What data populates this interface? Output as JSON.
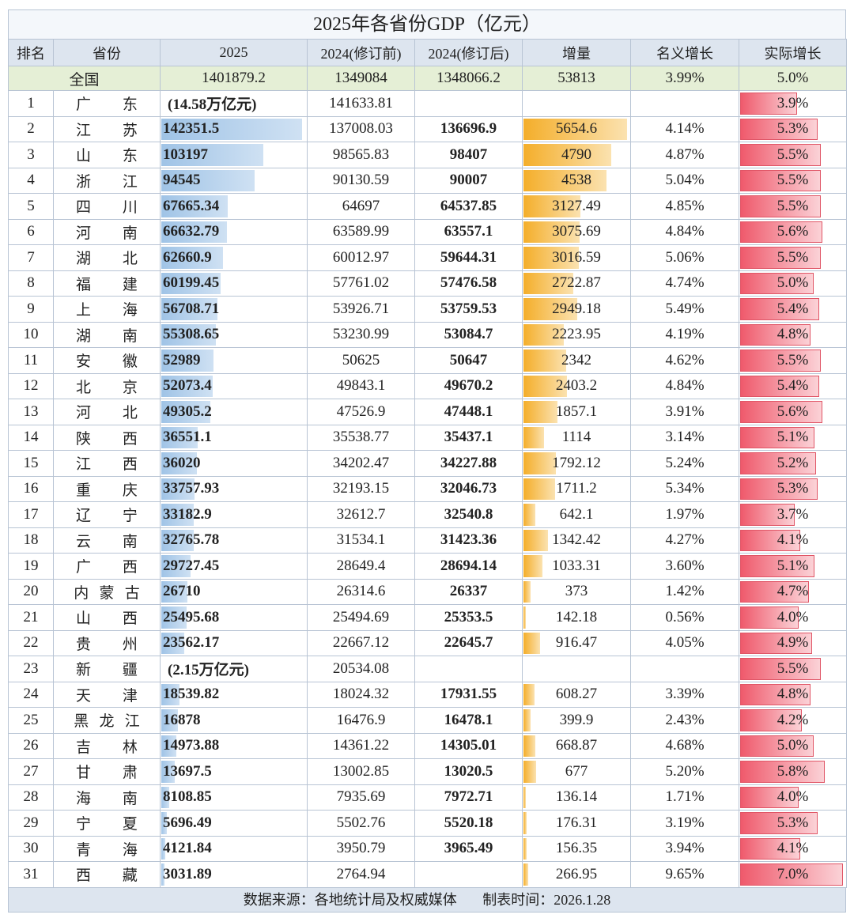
{
  "title": "2025年各省份GDP（亿元）",
  "table": {
    "header": [
      "排名",
      "省份",
      "2025",
      "2024(修订前)",
      "2024(修订后)",
      "增量",
      "名义增长",
      "实际增长"
    ],
    "national": [
      "全国",
      "1401879.2",
      "1349084",
      "1348066.2",
      "53813",
      "3.99%",
      "5.0%"
    ],
    "rows": [
      [
        "1",
        "广东",
        "(14.58万亿元)",
        "141633.81",
        null,
        null,
        null,
        "3.9%"
      ],
      [
        "2",
        "江苏",
        "142351.5",
        "137008.03",
        "136696.9",
        "5654.6",
        "4.14%",
        "5.3%"
      ],
      [
        "3",
        "山东",
        "103197",
        "98565.83",
        "98407",
        "4790",
        "4.87%",
        "5.5%"
      ],
      [
        "4",
        "浙江",
        "94545",
        "90130.59",
        "90007",
        "4538",
        "5.04%",
        "5.5%"
      ],
      [
        "5",
        "四川",
        "67665.34",
        "64697",
        "64537.85",
        "3127.49",
        "4.85%",
        "5.5%"
      ],
      [
        "6",
        "河南",
        "66632.79",
        "63589.99",
        "63557.1",
        "3075.69",
        "4.84%",
        "5.6%"
      ],
      [
        "7",
        "湖北",
        "62660.9",
        "60012.97",
        "59644.31",
        "3016.59",
        "5.06%",
        "5.5%"
      ],
      [
        "8",
        "福建",
        "60199.45",
        "57761.02",
        "57476.58",
        "2722.87",
        "4.74%",
        "5.0%"
      ],
      [
        "9",
        "上海",
        "56708.71",
        "53926.71",
        "53759.53",
        "2949.18",
        "5.49%",
        "5.4%"
      ],
      [
        "10",
        "湖南",
        "55308.65",
        "53230.99",
        "53084.7",
        "2223.95",
        "4.19%",
        "4.8%"
      ],
      [
        "11",
        "安徽",
        "52989",
        "50625",
        "50647",
        "2342",
        "4.62%",
        "5.5%"
      ],
      [
        "12",
        "北京",
        "52073.4",
        "49843.1",
        "49670.2",
        "2403.2",
        "4.84%",
        "5.4%"
      ],
      [
        "13",
        "河北",
        "49305.2",
        "47526.9",
        "47448.1",
        "1857.1",
        "3.91%",
        "5.6%"
      ],
      [
        "14",
        "陕西",
        "36551.1",
        "35538.77",
        "35437.1",
        "1114",
        "3.14%",
        "5.1%"
      ],
      [
        "15",
        "江西",
        "36020",
        "34202.47",
        "34227.88",
        "1792.12",
        "5.24%",
        "5.2%"
      ],
      [
        "16",
        "重庆",
        "33757.93",
        "32193.15",
        "32046.73",
        "1711.2",
        "5.34%",
        "5.3%"
      ],
      [
        "17",
        "辽宁",
        "33182.9",
        "32612.7",
        "32540.8",
        "642.1",
        "1.97%",
        "3.7%"
      ],
      [
        "18",
        "云南",
        "32765.78",
        "31534.1",
        "31423.36",
        "1342.42",
        "4.27%",
        "4.1%"
      ],
      [
        "19",
        "广西",
        "29727.45",
        "28649.4",
        "28694.14",
        "1033.31",
        "3.60%",
        "5.1%"
      ],
      [
        "20",
        "内蒙古",
        "26710",
        "26314.6",
        "26337",
        "373",
        "1.42%",
        "4.7%"
      ],
      [
        "21",
        "山西",
        "25495.68",
        "25494.69",
        "25353.5",
        "142.18",
        "0.56%",
        "4.0%"
      ],
      [
        "22",
        "贵州",
        "23562.17",
        "22667.12",
        "22645.7",
        "916.47",
        "4.05%",
        "4.9%"
      ],
      [
        "23",
        "新疆",
        "(2.15万亿元)",
        "20534.08",
        null,
        null,
        null,
        "5.5%"
      ],
      [
        "24",
        "天津",
        "18539.82",
        "18024.32",
        "17931.55",
        "608.27",
        "3.39%",
        "4.8%"
      ],
      [
        "25",
        "黑龙江",
        "16878",
        "16476.9",
        "16478.1",
        "399.9",
        "2.43%",
        "4.2%"
      ],
      [
        "26",
        "吉林",
        "14973.88",
        "14361.22",
        "14305.01",
        "668.87",
        "4.68%",
        "5.0%"
      ],
      [
        "27",
        "甘肃",
        "13697.5",
        "13002.85",
        "13020.5",
        "677",
        "5.20%",
        "5.8%"
      ],
      [
        "28",
        "海南",
        "8108.85",
        "7935.69",
        "7972.71",
        "136.14",
        "1.71%",
        "4.0%"
      ],
      [
        "29",
        "宁夏",
        "5696.49",
        "5502.76",
        "5520.18",
        "176.31",
        "3.19%",
        "5.3%"
      ],
      [
        "30",
        "青海",
        "4121.84",
        "3950.79",
        "3965.49",
        "156.35",
        "3.94%",
        "4.1%"
      ],
      [
        "31",
        "西藏",
        "3031.89",
        "2764.94",
        null,
        "266.95",
        "9.65%",
        "7.0%"
      ]
    ]
  },
  "footer": {
    "source": "数据来源：各地统计局及权威媒体",
    "date": "制表时间：2026.1.28"
  }
}
